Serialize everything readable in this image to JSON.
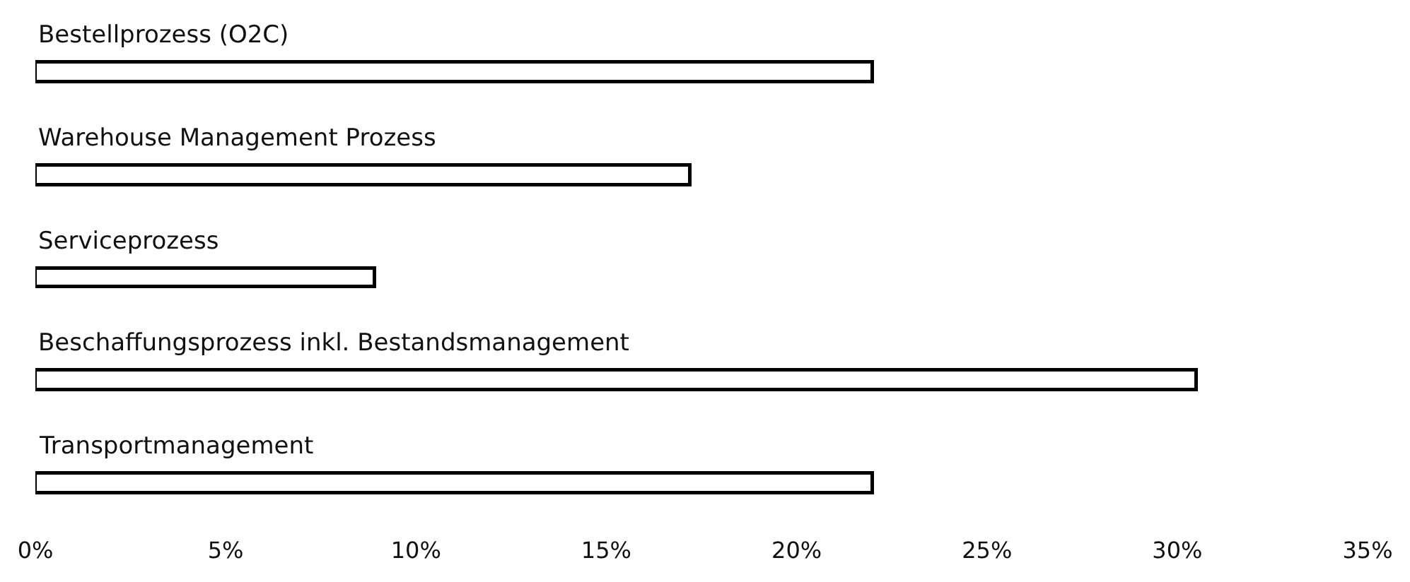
{
  "chart_data": {
    "type": "bar",
    "orientation": "horizontal",
    "categories": [
      "Bestellprozess (O2C)",
      "Warehouse Management Prozess",
      "Serviceprozess",
      "Beschaffungsprozess inkl. Bestandsmanagement",
      "Transportmanagement"
    ],
    "values": [
      22,
      17.2,
      8.9,
      30.5,
      22
    ],
    "color": "#ffffff",
    "xlim": [
      0,
      35
    ],
    "xticks": [
      {
        "value": 0,
        "label": "0%"
      },
      {
        "value": 5,
        "label": "5%"
      },
      {
        "value": 10,
        "label": "10%"
      },
      {
        "value": 15,
        "label": "15%"
      },
      {
        "value": 20,
        "label": "20%"
      },
      {
        "value": 25,
        "label": "25%"
      },
      {
        "value": 30,
        "label": "30%"
      },
      {
        "value": 35,
        "label": "35%"
      }
    ]
  }
}
